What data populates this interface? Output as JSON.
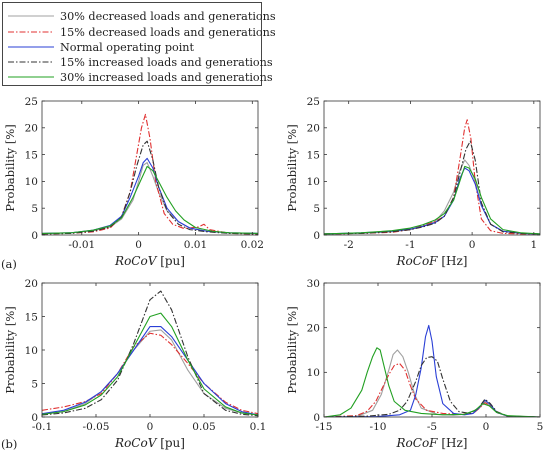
{
  "legend": {
    "entries": [
      {
        "label": "30% decreased loads and generations",
        "color": "#a0a0a0",
        "dash": "solid"
      },
      {
        "label": "15% decreased loads and generations",
        "color": "#e03030",
        "dash": "dashdot"
      },
      {
        "label": "Normal operating point",
        "color": "#2a3fd6",
        "dash": "solid"
      },
      {
        "label": "15% increased loads and generations",
        "color": "#333333",
        "dash": "dashdot"
      },
      {
        "label": "30% increased loads and generations",
        "color": "#22a022",
        "dash": "solid"
      }
    ]
  },
  "panel_tags": {
    "a": "(a)",
    "b": "(b)"
  },
  "chart_data": [
    {
      "id": "a-left",
      "type": "line",
      "xlabel_main": "RoCoV",
      "xlabel_unit": "[pu]",
      "ylabel": "Probability [%]",
      "xlim": [
        -0.017,
        0.021
      ],
      "ylim": [
        0,
        25
      ],
      "xticks": [
        -0.01,
        0,
        0.01,
        0.02
      ],
      "xtick_labels": [
        "-0.01",
        "0",
        "0.01",
        "0.02"
      ],
      "yticks": [
        0,
        5,
        10,
        15,
        20,
        25
      ],
      "series": [
        {
          "x": [
            -0.017,
            -0.012,
            -0.008,
            -0.005,
            -0.003,
            -0.001,
            0.0,
            0.0008,
            0.0015,
            0.0025,
            0.0035,
            0.005,
            0.007,
            0.009,
            0.012,
            0.016,
            0.021
          ],
          "y": [
            0.3,
            0.4,
            0.8,
            1.5,
            3.0,
            6.5,
            10,
            13,
            13.5,
            11,
            8,
            4.5,
            2.5,
            1.3,
            0.7,
            0.4,
            0.3
          ]
        },
        {
          "x": [
            -0.017,
            -0.012,
            -0.008,
            -0.005,
            -0.003,
            -0.0015,
            -0.0005,
            0.0005,
            0.0012,
            0.002,
            0.003,
            0.0045,
            0.006,
            0.008,
            0.0105,
            0.0115,
            0.0125,
            0.016,
            0.021
          ],
          "y": [
            0.2,
            0.3,
            0.6,
            1.3,
            3.5,
            8,
            14,
            20,
            22.5,
            18,
            10,
            4,
            2,
            1.2,
            1.5,
            2.0,
            1.0,
            0.3,
            0.2
          ]
        },
        {
          "x": [
            -0.017,
            -0.012,
            -0.008,
            -0.005,
            -0.003,
            -0.0015,
            0.0,
            0.0008,
            0.0015,
            0.0025,
            0.0035,
            0.005,
            0.007,
            0.009,
            0.012,
            0.016,
            0.021
          ],
          "y": [
            0.3,
            0.4,
            0.9,
            1.8,
            3.5,
            7,
            11,
            13.5,
            14.3,
            12.5,
            9,
            5,
            2.5,
            1.3,
            0.7,
            0.4,
            0.3
          ]
        },
        {
          "x": [
            -0.017,
            -0.012,
            -0.008,
            -0.005,
            -0.003,
            -0.0015,
            -0.0003,
            0.0008,
            0.0015,
            0.0025,
            0.0035,
            0.005,
            0.007,
            0.009,
            0.012,
            0.016,
            0.021
          ],
          "y": [
            0.2,
            0.3,
            0.7,
            1.5,
            3.3,
            8,
            13,
            16.8,
            17.5,
            14,
            9,
            4.5,
            2,
            1,
            0.6,
            0.3,
            0.2
          ]
        },
        {
          "x": [
            -0.017,
            -0.012,
            -0.008,
            -0.005,
            -0.003,
            -0.001,
            0.0005,
            0.0015,
            0.0025,
            0.0035,
            0.005,
            0.0065,
            0.008,
            0.01,
            0.013,
            0.016,
            0.021
          ],
          "y": [
            0.3,
            0.4,
            0.9,
            1.7,
            3.2,
            7,
            10.5,
            12.8,
            12,
            10,
            7,
            4.5,
            2.8,
            1.4,
            0.7,
            0.4,
            0.3
          ]
        }
      ]
    },
    {
      "id": "a-right",
      "type": "line",
      "xlabel_main": "RoCoF",
      "xlabel_unit": "[Hz]",
      "ylabel": "Probability [%]",
      "xlim": [
        -2.4,
        1.1
      ],
      "ylim": [
        0,
        25
      ],
      "xticks": [
        -2,
        -1,
        0,
        1
      ],
      "xtick_labels": [
        "-2",
        "-1",
        "0",
        "1"
      ],
      "yticks": [
        0,
        5,
        10,
        15,
        20,
        25
      ],
      "series": [
        {
          "x": [
            -2.4,
            -1.8,
            -1.3,
            -1.0,
            -0.8,
            -0.6,
            -0.45,
            -0.3,
            -0.2,
            -0.12,
            -0.05,
            0.05,
            0.15,
            0.3,
            0.5,
            0.8,
            1.1
          ],
          "y": [
            0.2,
            0.3,
            0.6,
            1.0,
            1.6,
            2.5,
            4.5,
            8,
            12,
            14,
            13,
            10,
            5.5,
            2,
            0.7,
            0.3,
            0.2
          ]
        },
        {
          "x": [
            -2.4,
            -1.8,
            -1.3,
            -1.0,
            -0.8,
            -0.6,
            -0.45,
            -0.3,
            -0.2,
            -0.12,
            -0.08,
            -0.02,
            0.05,
            0.15,
            0.3,
            0.5,
            0.8,
            1.1
          ],
          "y": [
            0.2,
            0.3,
            0.5,
            1.0,
            1.8,
            2.5,
            3.5,
            7,
            14,
            20,
            21.5,
            18,
            10,
            3,
            0.8,
            0.3,
            0.2,
            0.2
          ]
        },
        {
          "x": [
            -2.4,
            -1.8,
            -1.3,
            -1.0,
            -0.8,
            -0.6,
            -0.45,
            -0.3,
            -0.2,
            -0.12,
            -0.05,
            0.05,
            0.15,
            0.3,
            0.5,
            0.8,
            1.1
          ],
          "y": [
            0.2,
            0.4,
            0.7,
            1.1,
            1.6,
            2.3,
            3.5,
            6.5,
            10.5,
            12.5,
            12,
            9.5,
            5.5,
            2,
            0.7,
            0.3,
            0.2
          ]
        },
        {
          "x": [
            -2.4,
            -1.8,
            -1.3,
            -1.0,
            -0.8,
            -0.6,
            -0.45,
            -0.3,
            -0.2,
            -0.1,
            -0.03,
            0.05,
            0.15,
            0.3,
            0.5,
            0.8,
            1.1
          ],
          "y": [
            0.2,
            0.3,
            0.6,
            1.0,
            1.5,
            2.2,
            3.5,
            7,
            11.5,
            16,
            17.5,
            14,
            6,
            2,
            0.6,
            0.3,
            0.2
          ]
        },
        {
          "x": [
            -2.4,
            -1.8,
            -1.3,
            -1.0,
            -0.8,
            -0.6,
            -0.45,
            -0.3,
            -0.2,
            -0.12,
            -0.05,
            0.05,
            0.15,
            0.3,
            0.5,
            0.8,
            1.1
          ],
          "y": [
            0.2,
            0.4,
            0.8,
            1.3,
            1.9,
            2.8,
            4,
            6.5,
            10,
            12.8,
            12.5,
            10.5,
            7,
            3,
            1,
            0.4,
            0.2
          ]
        }
      ]
    },
    {
      "id": "b-left",
      "type": "line",
      "xlabel_main": "RoCoV",
      "xlabel_unit": "[pu]",
      "ylabel": "Probability [%]",
      "xlim": [
        -0.1,
        0.1
      ],
      "ylim": [
        0,
        20
      ],
      "xticks": [
        -0.1,
        -0.05,
        0,
        0.05,
        0.1
      ],
      "xtick_labels": [
        "-0.1",
        "-0.05",
        "0",
        "0.05",
        "0.1"
      ],
      "yticks": [
        0,
        5,
        10,
        15,
        20
      ],
      "series": [
        {
          "x": [
            -0.1,
            -0.08,
            -0.06,
            -0.045,
            -0.03,
            -0.015,
            0.0,
            0.01,
            0.02,
            0.035,
            0.05,
            0.07,
            0.085,
            0.1
          ],
          "y": [
            0.4,
            0.8,
            2,
            3.8,
            6.5,
            10,
            12.8,
            13,
            11.5,
            7,
            3.5,
            1.3,
            0.6,
            0.3
          ]
        },
        {
          "x": [
            -0.1,
            -0.08,
            -0.06,
            -0.045,
            -0.03,
            -0.015,
            0.0,
            0.01,
            0.02,
            0.035,
            0.05,
            0.07,
            0.085,
            0.1
          ],
          "y": [
            1.0,
            1.5,
            2.3,
            3.5,
            6.5,
            10.5,
            12.5,
            12.2,
            10.8,
            8,
            5,
            2.2,
            1.0,
            0.5
          ]
        },
        {
          "x": [
            -0.1,
            -0.08,
            -0.06,
            -0.045,
            -0.03,
            -0.015,
            0.0,
            0.01,
            0.02,
            0.035,
            0.05,
            0.07,
            0.085,
            0.1
          ],
          "y": [
            0.5,
            1.0,
            2.2,
            3.8,
            6.5,
            10,
            13.5,
            13.5,
            12,
            8.5,
            5,
            2.0,
            0.8,
            0.3
          ]
        },
        {
          "x": [
            -0.1,
            -0.08,
            -0.06,
            -0.045,
            -0.03,
            -0.015,
            0.0,
            0.01,
            0.02,
            0.035,
            0.05,
            0.07,
            0.085,
            0.1
          ],
          "y": [
            0.3,
            0.6,
            1.3,
            2.6,
            5.5,
            11,
            17.5,
            18.8,
            16,
            9,
            3.5,
            1.0,
            0.4,
            0.2
          ]
        },
        {
          "x": [
            -0.1,
            -0.08,
            -0.06,
            -0.045,
            -0.03,
            -0.015,
            0.0,
            0.01,
            0.02,
            0.035,
            0.05,
            0.07,
            0.085,
            0.1
          ],
          "y": [
            0.4,
            0.8,
            1.8,
            3.3,
            6,
            10.5,
            15,
            15.5,
            13.5,
            8.5,
            4.2,
            1.5,
            0.6,
            0.3
          ]
        }
      ]
    },
    {
      "id": "b-right",
      "type": "line",
      "xlabel_main": "RoCoF",
      "xlabel_unit": "[Hz]",
      "ylabel": "Probability [%]",
      "xlim": [
        -15,
        5
      ],
      "ylim": [
        0,
        30
      ],
      "xticks": [
        -15,
        -10,
        -5,
        0,
        5
      ],
      "xtick_labels": [
        "-15",
        "-10",
        "-5",
        "0",
        "5"
      ],
      "yticks": [
        0,
        10,
        20,
        30
      ],
      "series": [
        {
          "x": [
            -15,
            -12,
            -10.5,
            -9.7,
            -9,
            -8.6,
            -8.2,
            -7.7,
            -7.2,
            -6.6,
            -6,
            -4.5,
            -3,
            -1.2,
            -0.6,
            -0.1,
            0.4,
            1,
            2,
            5
          ],
          "y": [
            0,
            0.1,
            1.5,
            5,
            10.5,
            14,
            15,
            13.5,
            10,
            5,
            2,
            0.6,
            0.4,
            0.8,
            2,
            3.5,
            2.5,
            1,
            0.2,
            0
          ]
        },
        {
          "x": [
            -15,
            -12,
            -11,
            -10.2,
            -9.6,
            -9,
            -8.5,
            -8,
            -7.5,
            -7,
            -6.5,
            -5.5,
            -4,
            -2.5,
            -1.2,
            -0.6,
            -0.1,
            0.4,
            1,
            2,
            5
          ],
          "y": [
            0,
            0.3,
            1.3,
            3.5,
            6.5,
            9.5,
            11.5,
            12,
            10.5,
            7,
            4,
            1.5,
            0.8,
            0.6,
            0.8,
            2,
            3.2,
            2.5,
            1,
            0.2,
            0
          ]
        },
        {
          "x": [
            -15,
            -10,
            -8,
            -7,
            -6.5,
            -6,
            -5.6,
            -5.3,
            -5,
            -4.6,
            -4,
            -3,
            -2,
            -1.2,
            -0.6,
            -0.1,
            0.4,
            1,
            2,
            5
          ],
          "y": [
            0,
            0.1,
            0.5,
            1.5,
            5,
            11,
            18,
            20.5,
            17,
            9,
            3,
            0.8,
            0.5,
            0.8,
            2.2,
            3.8,
            2.8,
            1,
            0.2,
            0
          ]
        },
        {
          "x": [
            -15,
            -11,
            -9,
            -8,
            -7.3,
            -6.5,
            -6,
            -5.5,
            -5,
            -4.5,
            -4,
            -3.3,
            -2.5,
            -1.5,
            -0.7,
            -0.1,
            0.4,
            1,
            2,
            5
          ],
          "y": [
            0,
            0.2,
            0.6,
            1.5,
            3.5,
            8,
            11.5,
            13.3,
            13.5,
            12.5,
            8.5,
            3.5,
            1.2,
            0.8,
            2,
            4,
            3,
            1.2,
            0.2,
            0
          ]
        },
        {
          "x": [
            -15,
            -13.5,
            -12.5,
            -11.5,
            -11,
            -10.5,
            -10.1,
            -9.8,
            -9.4,
            -9,
            -8.5,
            -7.5,
            -6,
            -4,
            -2,
            -1,
            -0.3,
            0.3,
            1,
            2,
            5
          ],
          "y": [
            0,
            0.5,
            2,
            6,
            10,
            13.5,
            15.5,
            15,
            11,
            7,
            3.5,
            1.5,
            0.8,
            0.5,
            0.6,
            1.5,
            3,
            2.5,
            1,
            0.3,
            0
          ]
        }
      ]
    }
  ]
}
